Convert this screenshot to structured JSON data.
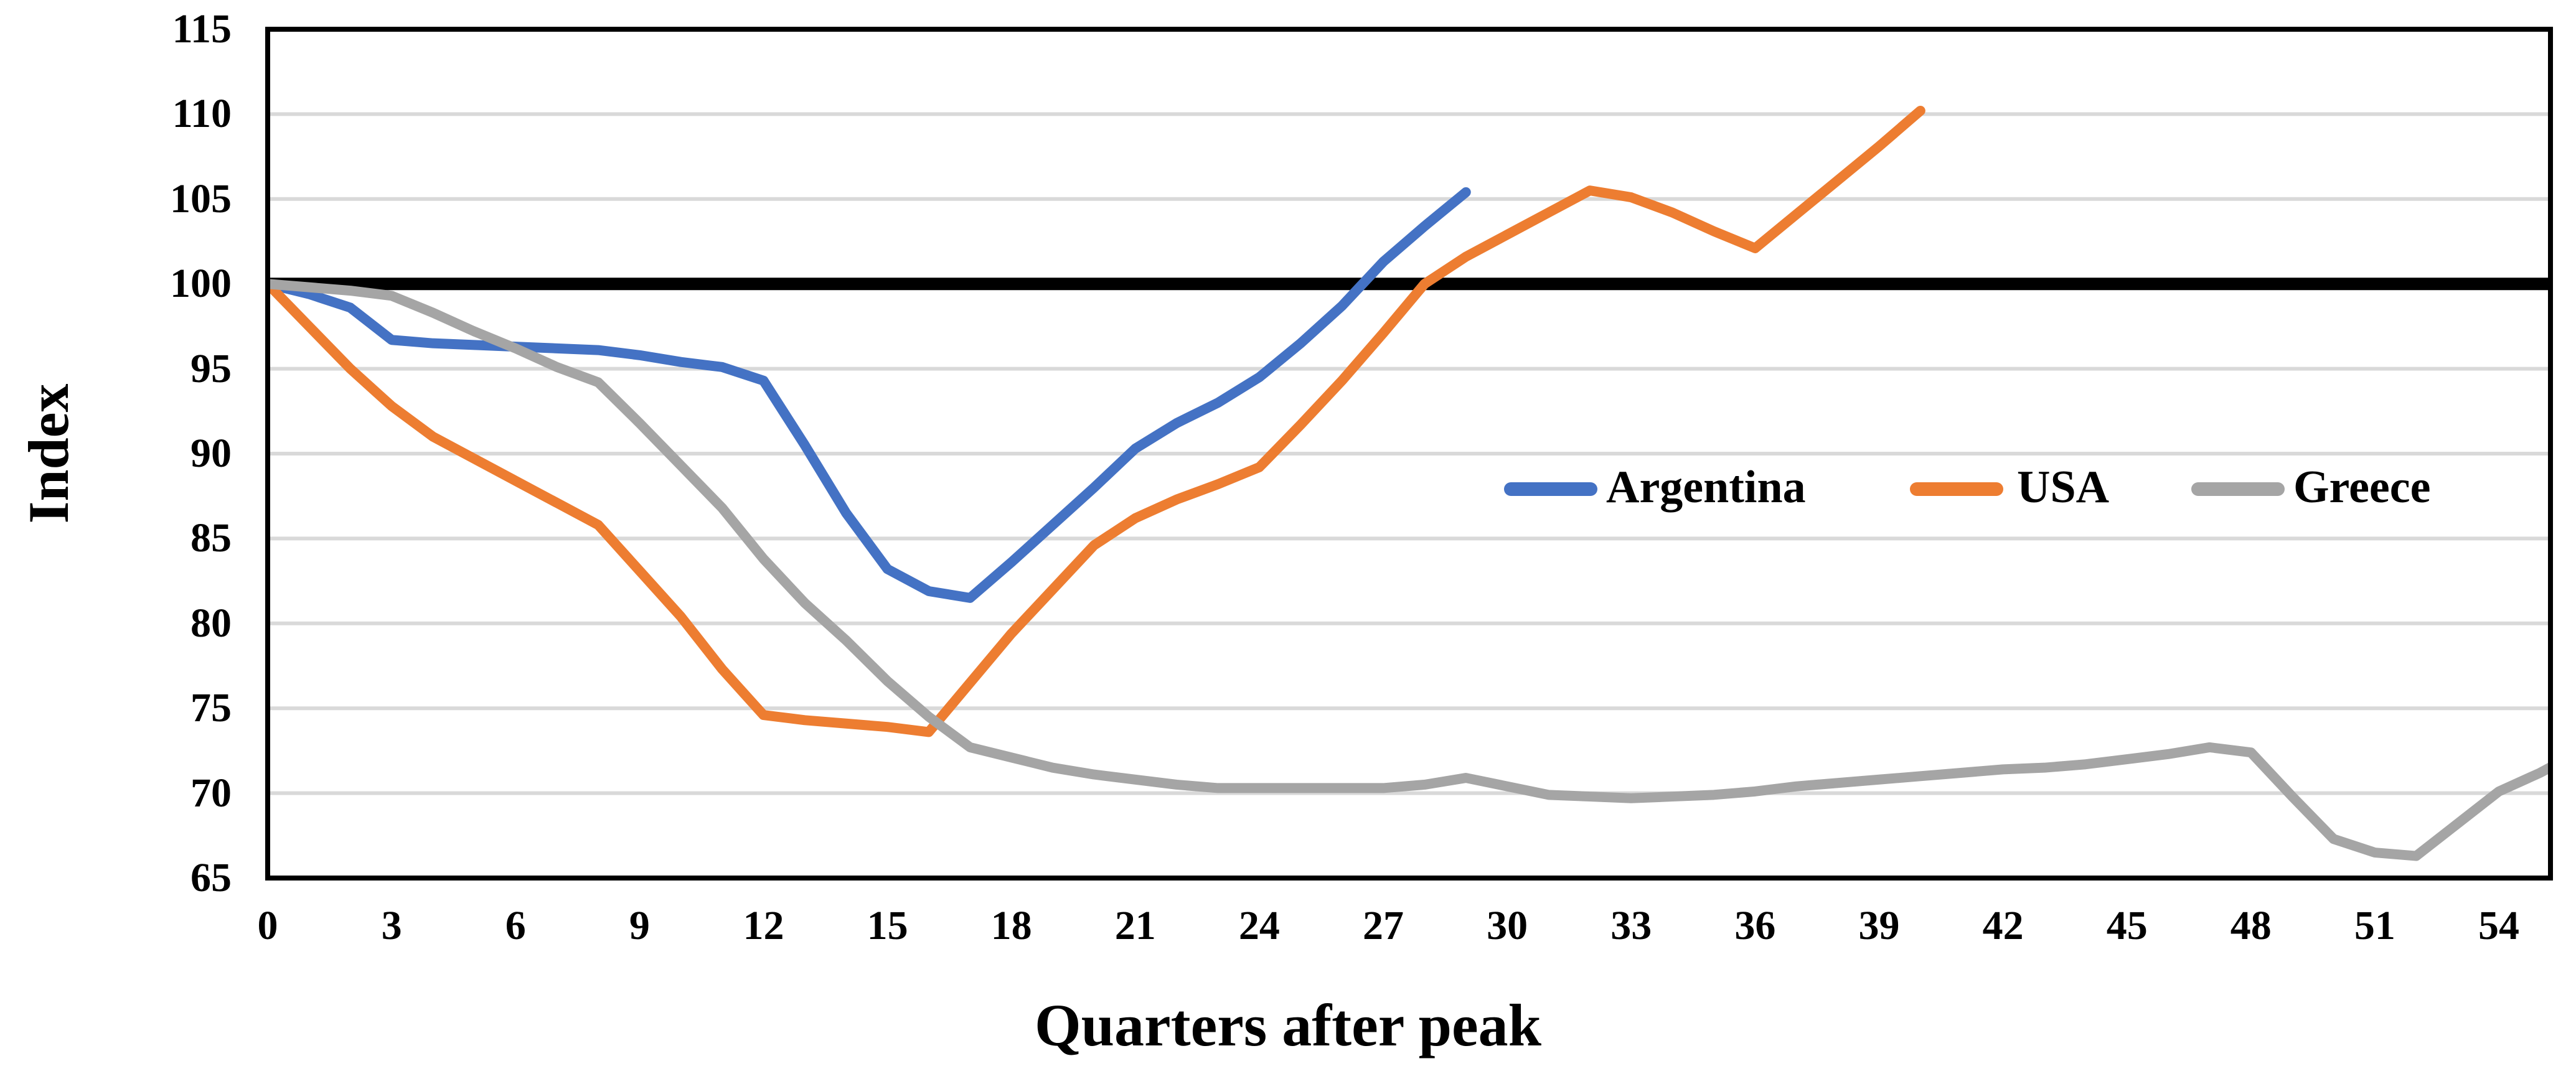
{
  "y_axis": {
    "label": "Index",
    "ticks": [
      115,
      110,
      105,
      100,
      95,
      90,
      85,
      80,
      75,
      70,
      65
    ],
    "min": 65,
    "max": 115
  },
  "x_axis": {
    "label": "Quarters after peak",
    "ticks": [
      0,
      3,
      6,
      9,
      12,
      15,
      18,
      21,
      24,
      27,
      30,
      33,
      36,
      39,
      42,
      45,
      48,
      51,
      54
    ]
  },
  "legend": [
    {
      "label": "Argentina",
      "color": "#4472C4"
    },
    {
      "label": "USA",
      "color": "#ED7D31"
    },
    {
      "label": "Greece",
      "color": "#A5A5A5"
    }
  ],
  "colors": {
    "gridline": "#D9D9D9",
    "baseline": "#000000",
    "plot_border": "#000000"
  },
  "chart_data": {
    "type": "line",
    "title": "",
    "xlabel": "Quarters after peak",
    "ylabel": "Index",
    "x_start": 0,
    "x_step": 1,
    "xlim": [
      0,
      55.25
    ],
    "ylim": [
      65,
      115
    ],
    "grid": "on",
    "legend_position": "inside-center-right",
    "baseline": {
      "value": 100,
      "color": "#000000"
    },
    "series": [
      {
        "name": "Argentina",
        "color": "#4472C4",
        "values": [
          100,
          99.4,
          98.6,
          96.7,
          96.5,
          96.4,
          96.3,
          96.2,
          96.1,
          95.8,
          95.4,
          95.1,
          94.3,
          90.5,
          86.5,
          83.2,
          81.9,
          81.5,
          83.6,
          85.8,
          88.0,
          90.3,
          91.8,
          93.0,
          94.5,
          96.5,
          98.7,
          101.3,
          103.4,
          105.4
        ]
      },
      {
        "name": "USA",
        "color": "#ED7D31",
        "values": [
          100,
          97.5,
          95.0,
          92.8,
          91.0,
          89.7,
          88.4,
          87.1,
          85.8,
          83.1,
          80.4,
          77.3,
          74.6,
          74.3,
          74.1,
          73.9,
          73.6,
          76.5,
          79.4,
          82.0,
          84.6,
          86.2,
          87.3,
          88.2,
          89.2,
          91.7,
          94.3,
          97.1,
          100.0,
          101.6,
          102.9,
          104.2,
          105.5,
          105.1,
          104.2,
          103.1,
          102.1,
          104.1,
          106.1,
          108.1,
          110.2
        ]
      },
      {
        "name": "Greece",
        "color": "#A5A5A5",
        "values": [
          100,
          99.8,
          99.6,
          99.3,
          98.3,
          97.2,
          96.2,
          95.1,
          94.2,
          91.8,
          89.3,
          86.8,
          83.8,
          81.2,
          79.0,
          76.6,
          74.5,
          72.7,
          72.1,
          71.5,
          71.1,
          70.8,
          70.5,
          70.3,
          70.3,
          70.3,
          70.3,
          70.3,
          70.5,
          70.9,
          70.4,
          69.9,
          69.8,
          69.7,
          69.8,
          69.9,
          70.1,
          70.4,
          70.6,
          70.8,
          71.0,
          71.2,
          71.4,
          71.5,
          71.7,
          72.0,
          72.3,
          72.7,
          72.4,
          69.8,
          67.3,
          66.5,
          66.3,
          68.2,
          70.1,
          71.2,
          72.5
        ]
      }
    ]
  }
}
